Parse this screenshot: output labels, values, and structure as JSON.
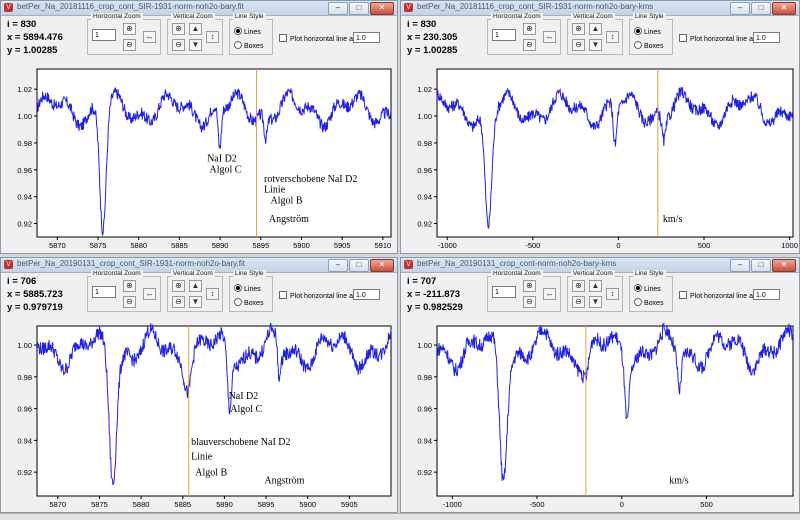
{
  "ui": {
    "horizontal_zoom_label": "Horizontal Zoom",
    "vertical_zoom_label": "Vertical Zoom",
    "line_style_label": "Line Style",
    "lines_label": "Lines",
    "boxes_label": "Boxes",
    "plot_line_label": "Plot horizontal line at y =",
    "plot_line_value": "1.0",
    "zoom_value": "1",
    "colors": {
      "spectrum": "#2222dd",
      "marker": "#e0a040"
    }
  },
  "windows": [
    {
      "title": "betPer_Na_20181116_crop_cont_SIR-1931-norm-noh2o-bary.fit",
      "i_text": "i  = 830",
      "x_text": "x = 5894.476",
      "y_text": "y = 1.00285"
    },
    {
      "title": "betPer_Na_20181116_crop_cont_SIR-1931-norm-noh2o-bary-kms",
      "i_text": "i  = 830",
      "x_text": "x = 230.305",
      "y_text": "y = 1.00285"
    },
    {
      "title": "betPer_Na_20190131_crop_cont_SIR-1931-norm-noh2o-bary.fit",
      "i_text": "i  = 706",
      "x_text": "x = 5885.723",
      "y_text": "y = 0.979719"
    },
    {
      "title": "betPer_Na_20190131_crop_cont-norm-noh2o-bary-kms",
      "i_text": "i  = 707",
      "x_text": "x = -211.873",
      "y_text": "y = 0.982529"
    }
  ],
  "chart_data": [
    {
      "type": "line",
      "xlim": [
        5867.5,
        5911
      ],
      "ylim": [
        0.91,
        1.035
      ],
      "xticks": [
        5870,
        5875,
        5880,
        5885,
        5890,
        5895,
        5900,
        5905,
        5910
      ],
      "yticks": [
        0.92,
        0.94,
        0.96,
        0.98,
        1.0,
        1.02
      ],
      "ytick_labels": [
        "0.92",
        "0.94",
        "0.96",
        "0.98",
        "1.00",
        "1.02"
      ],
      "marker_x": 5894.476,
      "continuum": 1.005,
      "lines": [
        {
          "center": 5875.6,
          "depth": 0.09,
          "width": 0.55
        },
        {
          "center": 5889.95,
          "depth": 0.032,
          "width": 0.28
        },
        {
          "center": 5895.6,
          "depth": 0.018,
          "width": 0.3
        }
      ],
      "annotations": [
        {
          "text": "NaI D2",
          "x": 5888.4,
          "y": 0.966
        },
        {
          "text": "Algol C",
          "x": 5888.7,
          "y": 0.958
        },
        {
          "text": "rotverschobene NaI D2",
          "x": 5895.4,
          "y": 0.951
        },
        {
          "text": "Linie",
          "x": 5895.4,
          "y": 0.943
        },
        {
          "text": "Algol B",
          "x": 5896.2,
          "y": 0.935
        },
        {
          "text": "Angström",
          "x": 5896.0,
          "y": 0.921
        }
      ]
    },
    {
      "type": "line",
      "xlim": [
        -1060,
        1020
      ],
      "ylim": [
        0.91,
        1.035
      ],
      "xticks": [
        -1000,
        -500,
        0,
        500,
        1000
      ],
      "yticks": [
        0.92,
        0.94,
        0.96,
        0.98,
        1.0,
        1.02
      ],
      "ytick_labels": [
        "0.92",
        "0.94",
        "0.96",
        "0.98",
        "1.00",
        "1.02"
      ],
      "marker_x": 230.305,
      "continuum": 1.005,
      "lines": [
        {
          "center": -760,
          "depth": 0.09,
          "width": 28
        },
        {
          "center": -20,
          "depth": 0.03,
          "width": 14
        },
        {
          "center": 265,
          "depth": 0.018,
          "width": 15
        }
      ],
      "annotations": [
        {
          "text": "km/s",
          "x": 260,
          "y": 0.921
        }
      ]
    },
    {
      "type": "line",
      "xlim": [
        5867.5,
        5910
      ],
      "ylim": [
        0.905,
        1.012
      ],
      "xticks": [
        5870,
        5875,
        5880,
        5885,
        5890,
        5895,
        5900,
        5905
      ],
      "yticks": [
        0.92,
        0.94,
        0.96,
        0.98,
        1.0
      ],
      "ytick_labels": [
        "0.92",
        "0.94",
        "0.96",
        "0.98",
        "1.00"
      ],
      "marker_x": 5885.723,
      "continuum": 0.997,
      "lines": [
        {
          "center": 5876.6,
          "depth": 0.076,
          "width": 0.6
        },
        {
          "center": 5885.6,
          "depth": 0.015,
          "width": 0.5
        },
        {
          "center": 5890.6,
          "depth": 0.036,
          "width": 0.35
        },
        {
          "center": 5896.6,
          "depth": 0.022,
          "width": 0.3
        }
      ],
      "annotations": [
        {
          "text": "NaI D2",
          "x": 5890.5,
          "y": 0.966
        },
        {
          "text": "Algol C",
          "x": 5890.7,
          "y": 0.958
        },
        {
          "text": "blauverschobene NaI D2",
          "x": 5886.0,
          "y": 0.937
        },
        {
          "text": "Linie",
          "x": 5886.0,
          "y": 0.928
        },
        {
          "text": "Algol B",
          "x": 5886.5,
          "y": 0.918
        },
        {
          "text": "Angström",
          "x": 5894.8,
          "y": 0.913
        }
      ]
    },
    {
      "type": "line",
      "xlim": [
        -1090,
        1010
      ],
      "ylim": [
        0.905,
        1.012
      ],
      "xticks": [
        -1000,
        -500,
        0,
        500
      ],
      "yticks": [
        0.92,
        0.94,
        0.96,
        0.98,
        1.0
      ],
      "ytick_labels": [
        "0.92",
        "0.94",
        "0.96",
        "0.98",
        "1.00"
      ],
      "marker_x": -211.873,
      "continuum": 0.997,
      "lines": [
        {
          "center": -700,
          "depth": 0.076,
          "width": 30
        },
        {
          "center": -210,
          "depth": 0.015,
          "width": 25
        },
        {
          "center": 30,
          "depth": 0.036,
          "width": 17
        },
        {
          "center": 340,
          "depth": 0.022,
          "width": 15
        }
      ],
      "annotations": [
        {
          "text": "km/s",
          "x": 280,
          "y": 0.913
        }
      ]
    }
  ]
}
